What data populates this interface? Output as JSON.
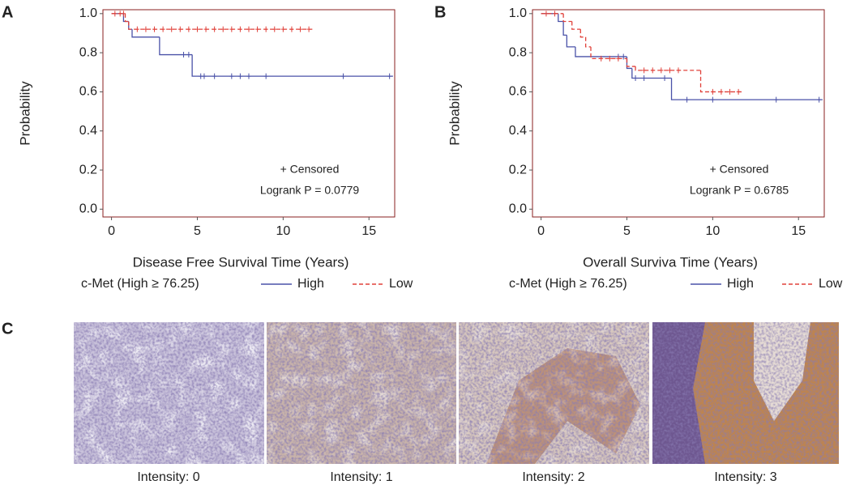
{
  "chart_data": [
    {
      "type": "line",
      "step": "post",
      "panel_label": "A",
      "x_label": "Disease Free Survival Time (Years)",
      "y_label": "Probability",
      "legend_title": "c-Met (High ≥ 76.25)",
      "annotations": [
        "+ Censored",
        "Logrank P = 0.0779"
      ],
      "xlim": [
        -0.5,
        16.5
      ],
      "ylim": [
        -0.04,
        1.02
      ],
      "xticks": [
        0,
        5,
        10,
        15
      ],
      "yticks": [
        {
          "value": 0,
          "label": "0.0"
        },
        0.2,
        0.4,
        0.6,
        0.8,
        {
          "value": 1,
          "label": "1.0"
        }
      ],
      "series": [
        {
          "name": "High",
          "color": "#4a52a8",
          "dash": false,
          "x": [
            0,
            0.7,
            1.0,
            1.2,
            2.8,
            4.7,
            16.4
          ],
          "values": [
            1,
            0.96,
            0.92,
            0.88,
            0.79,
            0.68,
            0.68
          ],
          "censored": {
            "x": [
              4.2,
              4.5,
              5.2,
              5.4,
              6.0,
              7.0,
              7.5,
              8.0,
              9.0,
              13.5,
              16.2
            ],
            "values": [
              0.79,
              0.79,
              0.68,
              0.68,
              0.68,
              0.68,
              0.68,
              0.68,
              0.68,
              0.68,
              0.68
            ]
          }
        },
        {
          "name": "Low",
          "color": "#e0413a",
          "dash": true,
          "x": [
            0,
            0.8,
            1.0,
            11.7
          ],
          "values": [
            1,
            0.96,
            0.92,
            0.92
          ],
          "censored": {
            "x": [
              0.2,
              0.5,
              0.7,
              1.5,
              2.0,
              2.5,
              3.0,
              3.5,
              4.0,
              4.5,
              5.0,
              5.5,
              6.0,
              6.5,
              7.0,
              7.5,
              8.0,
              8.5,
              9.0,
              9.5,
              10.0,
              10.5,
              11.0,
              11.5
            ],
            "values": [
              1,
              1,
              1,
              0.92,
              0.92,
              0.92,
              0.92,
              0.92,
              0.92,
              0.92,
              0.92,
              0.92,
              0.92,
              0.92,
              0.92,
              0.92,
              0.92,
              0.92,
              0.92,
              0.92,
              0.92,
              0.92,
              0.92,
              0.92
            ]
          }
        }
      ]
    },
    {
      "type": "line",
      "step": "post",
      "panel_label": "B",
      "x_label": "Overall Surviva Time (Years)",
      "y_label": "Probability",
      "legend_title": "c-Met (High ≥ 76.25)",
      "annotations": [
        "+ Censored",
        "Logrank P = 0.6785"
      ],
      "xlim": [
        -0.5,
        16.5
      ],
      "ylim": [
        -0.04,
        1.02
      ],
      "xticks": [
        0,
        5,
        10,
        15
      ],
      "yticks": [
        {
          "value": 0,
          "label": "0.0"
        },
        0.2,
        0.4,
        0.6,
        0.8,
        {
          "value": 1,
          "label": "1.0"
        }
      ],
      "series": [
        {
          "name": "High",
          "color": "#4a52a8",
          "dash": false,
          "x": [
            0,
            1.0,
            1.3,
            1.5,
            2.0,
            5.0,
            5.3,
            7.6,
            16.4
          ],
          "values": [
            1,
            0.96,
            0.89,
            0.83,
            0.78,
            0.72,
            0.67,
            0.56,
            0.56
          ],
          "censored": {
            "x": [
              4.5,
              4.8,
              5.5,
              6.0,
              7.2,
              8.5,
              10.0,
              13.7,
              16.2
            ],
            "values": [
              0.78,
              0.78,
              0.67,
              0.67,
              0.67,
              0.56,
              0.56,
              0.56,
              0.56
            ]
          }
        },
        {
          "name": "Low",
          "color": "#e0413a",
          "dash": true,
          "x": [
            0,
            1.3,
            1.8,
            2.3,
            2.6,
            2.9,
            5.0,
            5.5,
            9.3,
            11.7
          ],
          "values": [
            1,
            0.96,
            0.92,
            0.88,
            0.83,
            0.77,
            0.73,
            0.71,
            0.6,
            0.6
          ],
          "censored": {
            "x": [
              0.3,
              0.8,
              3.5,
              4.0,
              4.5,
              6.0,
              6.5,
              7.0,
              7.5,
              8.0,
              10.0,
              10.5,
              11.0,
              11.5
            ],
            "values": [
              1,
              1,
              0.77,
              0.77,
              0.77,
              0.71,
              0.71,
              0.71,
              0.71,
              0.71,
              0.6,
              0.6,
              0.6,
              0.6
            ]
          }
        }
      ]
    }
  ],
  "images": {
    "panel_label": "C",
    "captions": [
      "Intensity: 0",
      "Intensity: 1",
      "Intensity: 2",
      "Intensity: 3"
    ]
  }
}
